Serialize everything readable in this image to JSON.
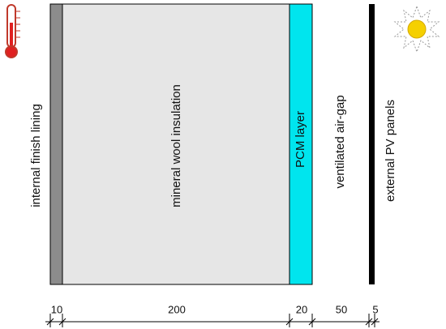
{
  "layers": [
    {
      "label": "internal finish lining",
      "thickness": 10
    },
    {
      "label": "mineral wool insulation",
      "thickness": 200
    },
    {
      "label": "PCM layer",
      "thickness": 20
    },
    {
      "label": "ventilated air-gap",
      "thickness": 50
    },
    {
      "label": "external PV panels",
      "thickness": 5
    }
  ]
}
